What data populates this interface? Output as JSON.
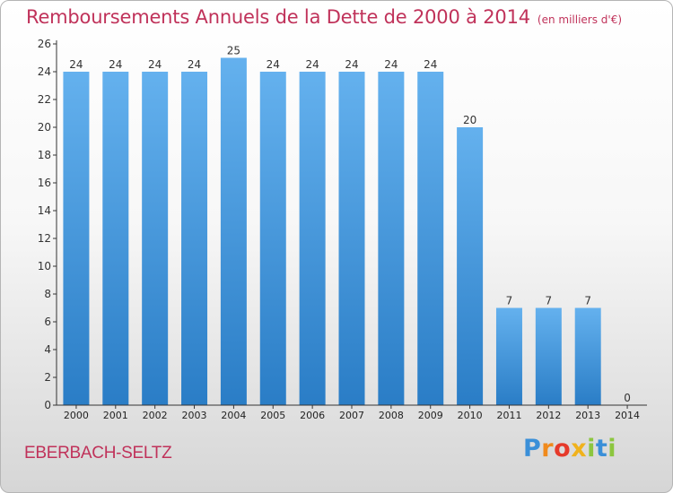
{
  "chart_title": "Remboursements Annuels de la Dette de 2000 à 2014",
  "unit_note": "(en milliers d'€)",
  "commune": "EBERBACH-SELTZ",
  "logo": {
    "letters": [
      {
        "ch": "P",
        "color": "#3a8fd8"
      },
      {
        "ch": "r",
        "color": "#f08a1c"
      },
      {
        "ch": "o",
        "color": "#e63a2b"
      },
      {
        "ch": "x",
        "color": "#f0b21c"
      },
      {
        "ch": "i",
        "color": "#8cc63f"
      },
      {
        "ch": "t",
        "color": "#3a8fd8"
      },
      {
        "ch": "i",
        "color": "#8cc63f"
      }
    ]
  },
  "colors": {
    "bar_light": "#64b1ee",
    "bar_dark": "#2a7dc6",
    "title": "#c0325a",
    "axis": "#333333"
  },
  "chart_data": {
    "type": "bar",
    "categories": [
      "2000",
      "2001",
      "2002",
      "2003",
      "2004",
      "2005",
      "2006",
      "2007",
      "2008",
      "2009",
      "2010",
      "2011",
      "2012",
      "2013",
      "2014"
    ],
    "values": [
      24,
      24,
      24,
      24,
      25,
      24,
      24,
      24,
      24,
      24,
      20,
      7,
      7,
      7,
      0
    ],
    "data_labels": [
      "24",
      "24",
      "24",
      "24",
      "25",
      "24",
      "24",
      "24",
      "24",
      "24",
      "20",
      "7",
      "7",
      "7",
      "0"
    ],
    "title": "Remboursements Annuels de la Dette de 2000 à 2014",
    "xlabel": "",
    "ylabel": "",
    "ylim": [
      0,
      26
    ],
    "yticks": [
      0,
      2,
      4,
      6,
      8,
      10,
      12,
      14,
      16,
      18,
      20,
      22,
      24,
      26
    ],
    "grid": false,
    "legend": "none"
  }
}
